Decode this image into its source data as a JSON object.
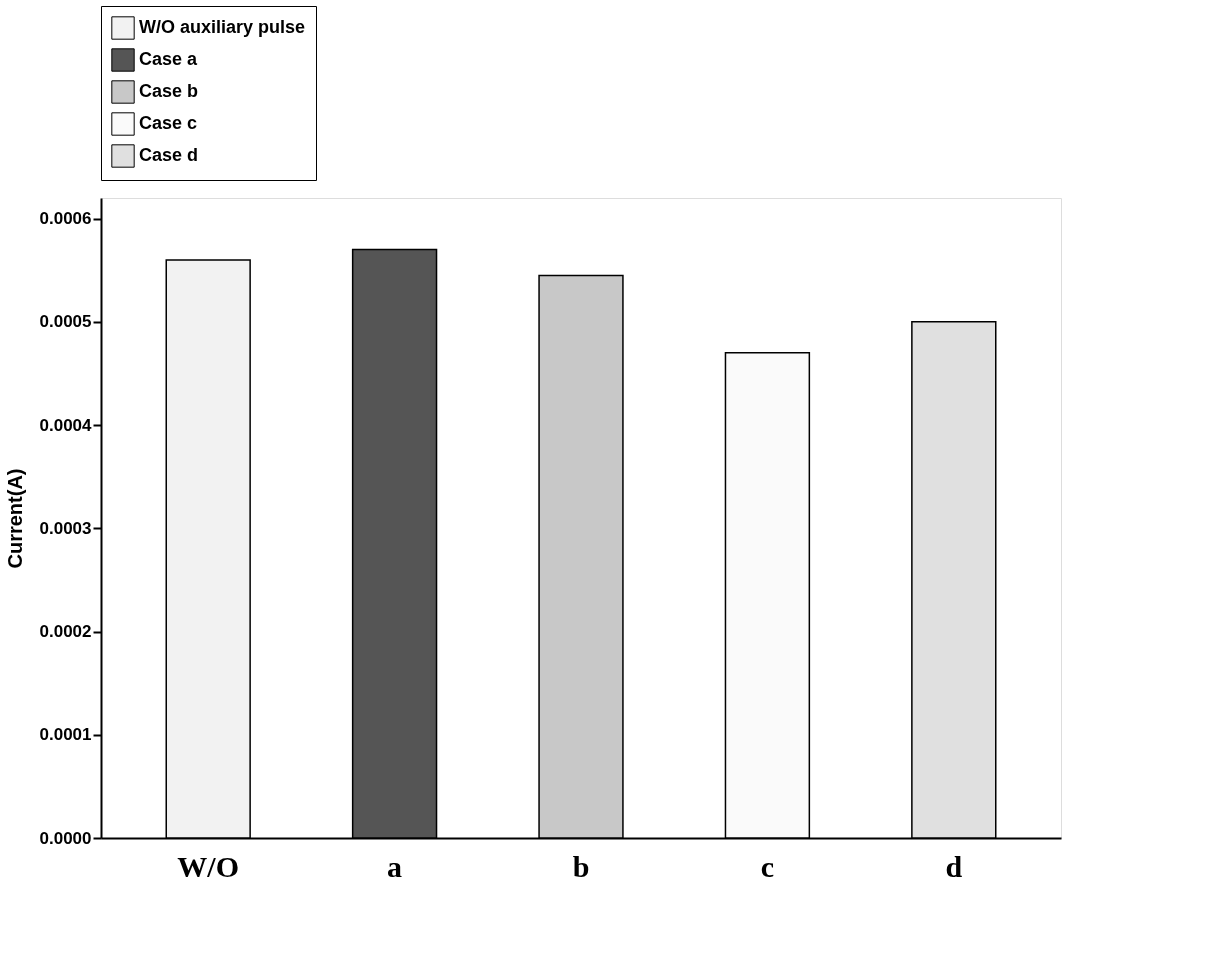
{
  "chart_data": {
    "type": "bar",
    "ylabel": "Current(A)",
    "categories": [
      "W/O",
      "a",
      "b",
      "c",
      "d"
    ],
    "series": [
      {
        "name": "W/O auxiliary pulse",
        "color": "#f2f2f2",
        "values": [
          0.00056,
          null,
          null,
          null,
          null
        ]
      },
      {
        "name": "Case a",
        "color": "#555555",
        "values": [
          null,
          0.00057,
          null,
          null,
          null
        ]
      },
      {
        "name": "Case b",
        "color": "#c8c8c8",
        "values": [
          null,
          null,
          0.000545,
          null,
          null
        ]
      },
      {
        "name": "Case c",
        "color": "#fafafa",
        "values": [
          null,
          null,
          null,
          0.00047,
          null
        ]
      },
      {
        "name": "Case d",
        "color": "#e0e0e0",
        "values": [
          null,
          null,
          null,
          null,
          0.0005
        ]
      }
    ],
    "ylim": [
      0,
      0.00062
    ],
    "yticks": [
      {
        "value": 0,
        "label": "0.0000"
      },
      {
        "value": 0.0001,
        "label": "0.0001"
      },
      {
        "value": 0.0002,
        "label": "0.0002"
      },
      {
        "value": 0.0003,
        "label": "0.0003"
      },
      {
        "value": 0.0004,
        "label": "0.0004"
      },
      {
        "value": 0.0005,
        "label": "0.0005"
      },
      {
        "value": 0.0006,
        "label": "0.0006"
      }
    ],
    "grid": false,
    "legend": "top"
  }
}
